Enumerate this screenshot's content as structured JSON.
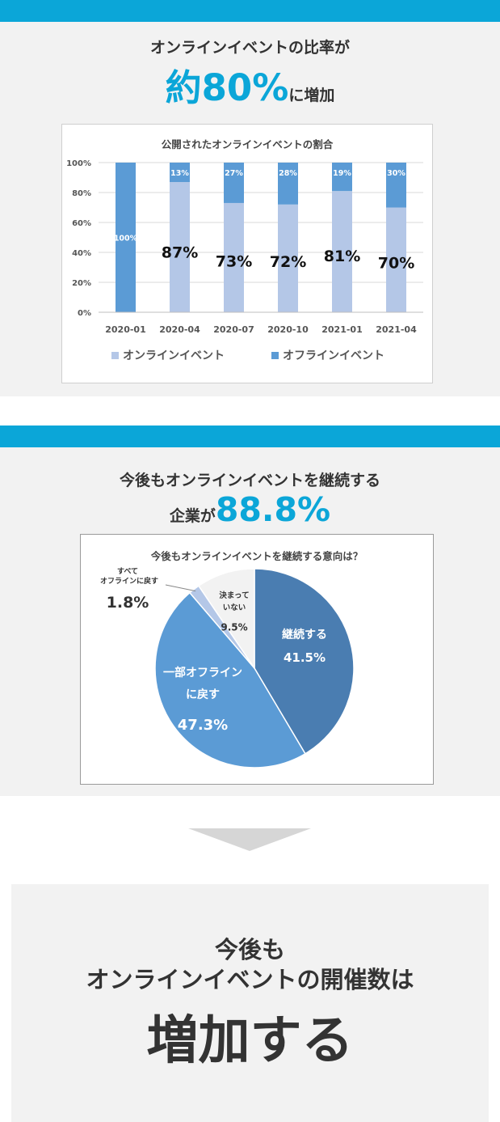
{
  "section1": {
    "headline_line1": "オンラインイベントの比率が",
    "headline_big": "約80%",
    "headline_tail": "に増加"
  },
  "section2": {
    "headline_line1": "今後もオンラインイベントを継続する",
    "headline_pre": "企業が",
    "headline_big": "88.8%"
  },
  "final": {
    "line1": "今後も",
    "line2": "オンラインイベントの開催数は",
    "big": "増加する"
  },
  "colors": {
    "accent": "#0ba6d8",
    "online": "#b4c7e7",
    "offline": "#5b9bd5",
    "pie_continue": "#4a7db1",
    "pie_partial": "#5b9bd5",
    "pie_all": "#b4c7e7",
    "pie_undecided": "#f2f2f2"
  },
  "chart_data": [
    {
      "type": "bar",
      "title": "公開されたオンラインイベントの割合",
      "categories": [
        "2020-01",
        "2020-04",
        "2020-07",
        "2020-10",
        "2021-01",
        "2021-04"
      ],
      "series": [
        {
          "name": "オンラインイベント",
          "values": [
            0,
            87,
            73,
            72,
            81,
            70
          ],
          "labels": [
            "",
            "87%",
            "73%",
            "72%",
            "81%",
            "70%"
          ]
        },
        {
          "name": "オフラインイベント",
          "values": [
            100,
            13,
            27,
            28,
            19,
            30
          ],
          "labels": [
            "100%",
            "13%",
            "27%",
            "28%",
            "19%",
            "30%"
          ]
        }
      ],
      "yticks": [
        "0%",
        "20%",
        "40%",
        "60%",
        "80%",
        "100%"
      ],
      "ylim": [
        0,
        100
      ],
      "stacked": true,
      "grid": true,
      "legend_position": "bottom"
    },
    {
      "type": "pie",
      "title": "今後もオンラインイベントを継続する意向は？",
      "slices": [
        {
          "name": "継続する",
          "value": 41.5,
          "label": "41.5%"
        },
        {
          "name": "一部オフライン に戻す",
          "name_lines": [
            "一部オフライン",
            "に戻す"
          ],
          "value": 47.3,
          "label": "47.3%"
        },
        {
          "name": "すべて オフラインに戻す",
          "name_lines": [
            "すべて",
            "オフラインに戻す"
          ],
          "value": 1.8,
          "label": "1.8%"
        },
        {
          "name": "決まって いない",
          "name_lines": [
            "決まって",
            "いない"
          ],
          "value": 9.5,
          "label": "9.5%"
        }
      ]
    }
  ]
}
